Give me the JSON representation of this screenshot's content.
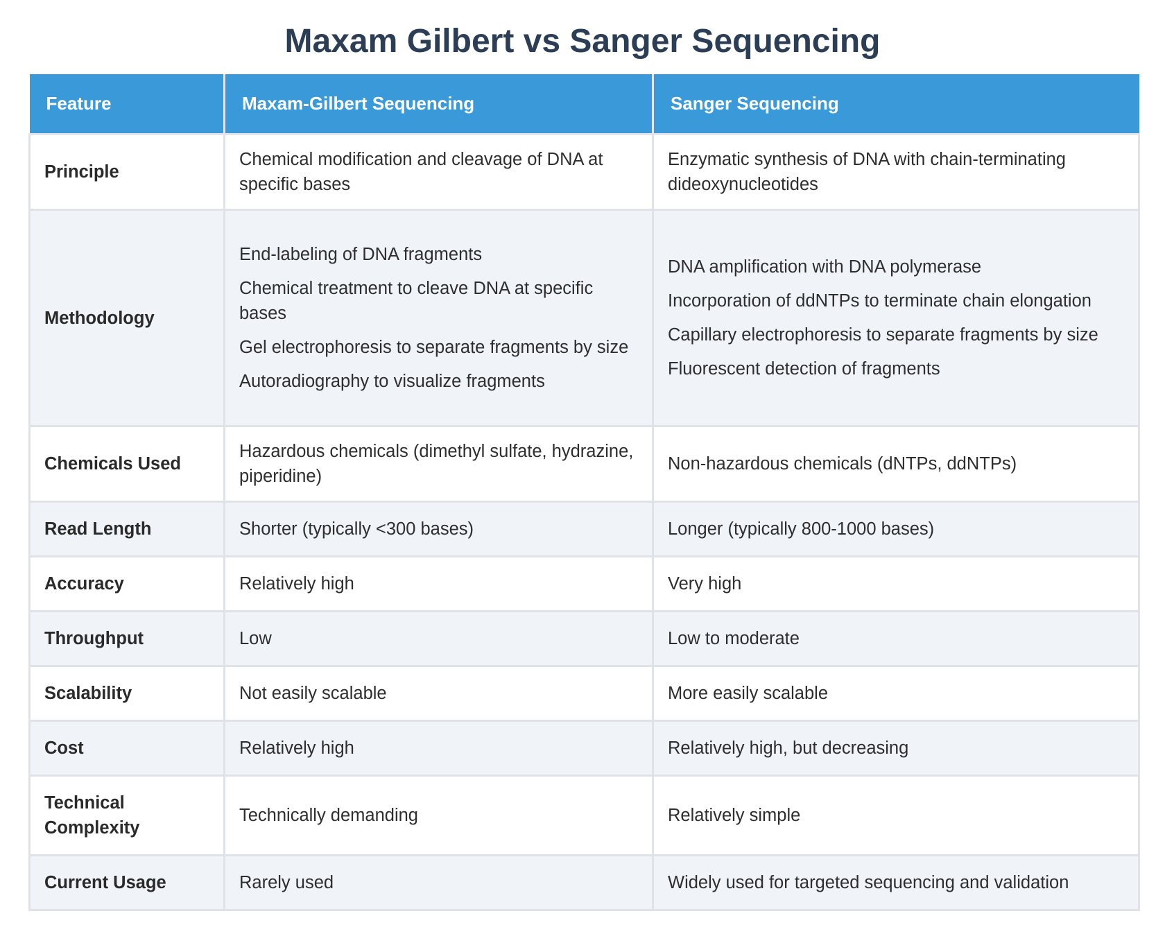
{
  "title": "Maxam Gilbert vs Sanger Sequencing",
  "table": {
    "headers": [
      "Feature",
      "Maxam-Gilbert Sequencing",
      "Sanger Sequencing"
    ],
    "rows": [
      {
        "feature": "Principle",
        "maxam": "Chemical modification and cleavage of DNA at specific bases",
        "sanger": "Enzymatic synthesis of DNA with chain-terminating dideoxynucleotides"
      },
      {
        "feature": "Methodology",
        "maxam_steps": [
          "End-labeling of DNA fragments",
          "Chemical treatment to cleave DNA at specific bases",
          "Gel electrophoresis to separate fragments by size",
          "Autoradiography to visualize fragments"
        ],
        "sanger_steps": [
          "DNA amplification with DNA polymerase",
          "Incorporation of ddNTPs to terminate chain elongation",
          "Capillary electrophoresis to separate fragments by size",
          "Fluorescent detection of fragments"
        ]
      },
      {
        "feature": "Chemicals Used",
        "maxam": "Hazardous chemicals (dimethyl sulfate, hydrazine, piperidine)",
        "sanger": "Non-hazardous chemicals (dNTPs, ddNTPs)"
      },
      {
        "feature": "Read Length",
        "maxam": "Shorter (typically <300 bases)",
        "sanger": "Longer (typically 800-1000 bases)"
      },
      {
        "feature": "Accuracy",
        "maxam": "Relatively high",
        "sanger": "Very high"
      },
      {
        "feature": "Throughput",
        "maxam": "Low",
        "sanger": "Low to moderate"
      },
      {
        "feature": "Scalability",
        "maxam": "Not easily scalable",
        "sanger": "More easily scalable"
      },
      {
        "feature": "Cost",
        "maxam": "Relatively high",
        "sanger": "Relatively high, but decreasing"
      },
      {
        "feature": "Technical Complexity",
        "maxam": "Technically demanding",
        "sanger": "Relatively simple"
      },
      {
        "feature": "Current Usage",
        "maxam": "Rarely used",
        "sanger": "Widely used for targeted sequencing and validation"
      }
    ]
  },
  "colors": {
    "header_bg": "#3a9ad9",
    "title": "#2c3e55",
    "alt_row": "#f0f3f8",
    "border": "#dfe2e7"
  }
}
